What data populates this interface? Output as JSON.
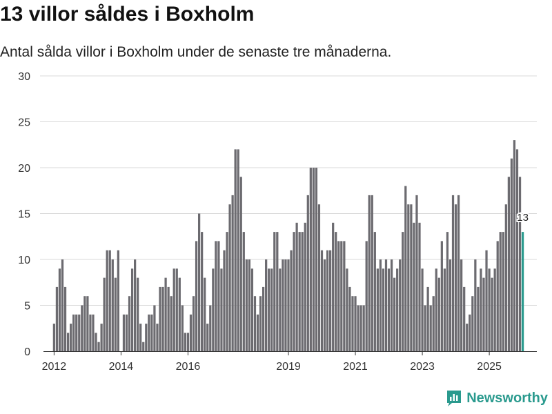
{
  "header": {
    "title": "13 villor såldes i Boxholm",
    "subtitle": "Antal sålda villor i Boxholm under de senaste tre månaderna."
  },
  "brand": {
    "name": "Newsworthy",
    "color": "#2a9a8e"
  },
  "colors": {
    "bar": "#6c6b70",
    "highlight": "#2a9a8e",
    "grid": "#d9d9d9"
  },
  "chart_data": {
    "type": "bar",
    "title": "13 villor såldes i Boxholm",
    "ylabel": "",
    "xlabel": "",
    "ylim": [
      0,
      30
    ],
    "yticks": [
      0,
      5,
      10,
      15,
      20,
      25,
      30
    ],
    "x_start": 2012.0,
    "x_step": 0.08333,
    "xticks": [
      {
        "label": "2012",
        "value": 2012
      },
      {
        "label": "2014",
        "value": 2014
      },
      {
        "label": "2016",
        "value": 2016
      },
      {
        "label": "2019",
        "value": 2019
      },
      {
        "label": "2021",
        "value": 2021
      },
      {
        "label": "2023",
        "value": 2023
      },
      {
        "label": "2025",
        "value": 2025
      }
    ],
    "values": [
      3,
      7,
      9,
      10,
      7,
      2,
      3,
      4,
      4,
      4,
      5,
      6,
      6,
      4,
      4,
      2,
      1,
      3,
      8,
      11,
      11,
      10,
      8,
      11,
      0,
      4,
      4,
      6,
      9,
      10,
      8,
      3,
      1,
      3,
      4,
      4,
      5,
      3,
      7,
      7,
      8,
      7,
      6,
      9,
      9,
      8,
      5,
      2,
      2,
      4,
      6,
      12,
      15,
      13,
      8,
      3,
      5,
      9,
      12,
      12,
      9,
      11,
      13,
      16,
      17,
      22,
      22,
      19,
      13,
      10,
      10,
      9,
      6,
      4,
      6,
      7,
      10,
      9,
      9,
      13,
      13,
      9,
      10,
      10,
      10,
      11,
      13,
      14,
      13,
      13,
      14,
      17,
      20,
      20,
      20,
      16,
      11,
      10,
      11,
      11,
      14,
      13,
      12,
      12,
      12,
      9,
      7,
      6,
      6,
      5,
      5,
      5,
      12,
      17,
      17,
      13,
      9,
      10,
      9,
      10,
      9,
      10,
      8,
      9,
      10,
      13,
      18,
      16,
      16,
      14,
      17,
      14,
      9,
      5,
      7,
      5,
      6,
      9,
      8,
      12,
      9,
      13,
      10,
      17,
      16,
      17,
      10,
      7,
      3,
      4,
      6,
      10,
      7,
      9,
      8,
      11,
      9,
      8,
      9,
      12,
      13,
      13,
      16,
      19,
      21,
      23,
      22,
      19,
      13
    ],
    "highlight_label": "13"
  }
}
